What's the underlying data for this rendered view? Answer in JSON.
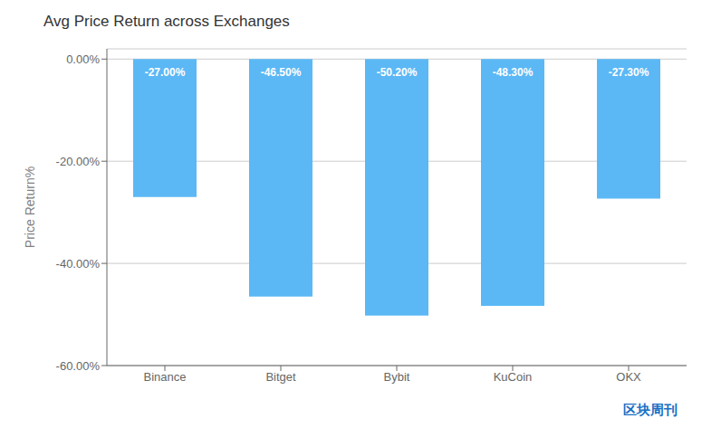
{
  "chart_data": {
    "type": "bar",
    "title": "Avg Price Return across Exchanges",
    "categories": [
      "Binance",
      "Bitget",
      "Bybit",
      "KuCoin",
      "OKX"
    ],
    "values": [
      -27.0,
      -46.5,
      -50.2,
      -48.3,
      -27.3
    ],
    "value_labels": [
      "-27.00%",
      "-46.50%",
      "-50.20%",
      "-48.30%",
      "-27.30%"
    ],
    "data_labels": true,
    "color": "#5BB8F5",
    "ylabel": "Price Return%",
    "ylim": [
      -60,
      2
    ],
    "yticks": [
      {
        "value": 0.0,
        "label": "0.00%"
      },
      {
        "value": -20.0,
        "label": "-20.00%"
      },
      {
        "value": -40.0,
        "label": "-40.00%"
      },
      {
        "value": -60.0,
        "label": "-60.00%"
      }
    ],
    "grid": true,
    "annotations": [
      "区块周刊"
    ]
  }
}
